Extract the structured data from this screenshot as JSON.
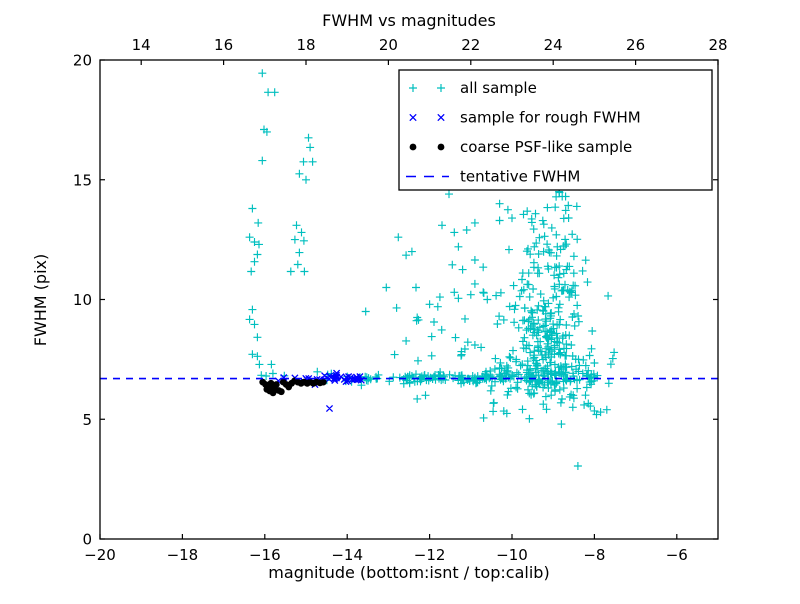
{
  "window": {
    "background": "#ffffff"
  },
  "chart_data": {
    "type": "scatter",
    "title": "FWHM vs magnitudes",
    "xlabel": "magnitude (bottom:isnt / top:calib)",
    "ylabel": "FWHM (pix)",
    "grid": false,
    "legend_position": "upper right",
    "x_bottom_axis": {
      "range": [
        -20,
        -5
      ],
      "ticks": [
        -20,
        -18,
        -16,
        -14,
        -12,
        -10,
        -8,
        -6
      ],
      "tick_labels": [
        "−20",
        "−18",
        "−16",
        "−14",
        "−12",
        "−10",
        "−8",
        "−6"
      ]
    },
    "x_top_axis": {
      "range": [
        13,
        28
      ],
      "ticks": [
        14,
        16,
        18,
        20,
        22,
        24,
        26,
        28
      ],
      "tick_labels": [
        "14",
        "16",
        "18",
        "20",
        "22",
        "24",
        "26",
        "28"
      ]
    },
    "y_axis": {
      "range": [
        0,
        20
      ],
      "ticks": [
        0,
        5,
        10,
        15,
        20
      ],
      "tick_labels": [
        "0",
        "5",
        "10",
        "15",
        "20"
      ]
    },
    "tentative_fwhm_value": 6.7,
    "random_seed": 7,
    "series": [
      {
        "name": "all sample",
        "marker": "plus",
        "color": "#00bfbf",
        "points": [
          [
            -16.06,
            19.45
          ],
          [
            -15.92,
            18.65
          ],
          [
            -15.76,
            18.65
          ],
          [
            -16.02,
            17.1
          ],
          [
            -15.95,
            17.0
          ],
          [
            -16.06,
            15.8
          ],
          [
            -16.3,
            13.8
          ],
          [
            -16.16,
            13.2
          ],
          [
            -16.37,
            12.6
          ],
          [
            -16.25,
            12.4
          ],
          [
            -16.14,
            12.3
          ],
          [
            -16.18,
            11.88
          ],
          [
            -16.25,
            11.58
          ],
          [
            -16.33,
            11.17
          ],
          [
            -16.3,
            9.58
          ],
          [
            -16.37,
            9.17
          ],
          [
            -16.25,
            8.96
          ],
          [
            -16.18,
            8.42
          ],
          [
            -16.3,
            7.71
          ],
          [
            -16.18,
            7.63
          ],
          [
            -16.13,
            7.29
          ],
          [
            -15.84,
            7.29
          ],
          [
            -14.94,
            16.75
          ],
          [
            -14.9,
            16.35
          ],
          [
            -15.06,
            15.75
          ],
          [
            -14.84,
            15.75
          ],
          [
            -15.16,
            15.25
          ],
          [
            -15.0,
            15.0
          ],
          [
            -15.23,
            13.1
          ],
          [
            -15.11,
            12.8
          ],
          [
            -15.27,
            12.5
          ],
          [
            -15.05,
            12.45
          ],
          [
            -15.16,
            11.96
          ],
          [
            -15.2,
            11.46
          ],
          [
            -15.37,
            11.17
          ],
          [
            -15.04,
            11.17
          ],
          [
            -12.57,
            11.85
          ],
          [
            -13.05,
            10.5
          ],
          [
            -12.33,
            10.5
          ],
          [
            -13.55,
            9.5
          ],
          [
            -12.8,
            9.65
          ],
          [
            -12.3,
            9.25
          ],
          [
            -12.27,
            9.15
          ],
          [
            -12.0,
            9.8
          ],
          [
            -11.8,
            9.7
          ],
          [
            -11.75,
            10.1
          ],
          [
            -11.4,
            10.3
          ],
          [
            -11.3,
            10.05
          ],
          [
            -11.0,
            10.2
          ],
          [
            -10.9,
            10.65
          ],
          [
            -10.7,
            10.3
          ],
          [
            -10.6,
            10.0
          ],
          [
            -11.53,
            14.4
          ],
          [
            -12.76,
            12.6
          ],
          [
            -12.43,
            12.0
          ],
          [
            -11.7,
            13.1
          ],
          [
            -11.4,
            12.8
          ],
          [
            -11.1,
            12.9
          ],
          [
            -10.9,
            13.2
          ],
          [
            -11.3,
            12.2
          ],
          [
            -11.45,
            11.45
          ],
          [
            -11.2,
            11.25
          ],
          [
            -10.9,
            11.65
          ],
          [
            -10.7,
            11.35
          ],
          [
            -12.85,
            7.7
          ],
          [
            -11.95,
            7.65
          ],
          [
            -11.95,
            8.45
          ],
          [
            -10.9,
            8.1
          ],
          [
            -10.75,
            8.0
          ],
          [
            -10.2,
            9.15
          ],
          [
            -9.95,
            9.05
          ],
          [
            -10.3,
            14.0
          ],
          [
            -10.1,
            13.75
          ],
          [
            -10.3,
            13.3
          ],
          [
            -10.0,
            13.4
          ],
          [
            -8.7,
            14.3
          ],
          [
            -8.9,
            12.2
          ],
          [
            -8.5,
            11.1
          ],
          [
            -7.6,
            7.3
          ],
          [
            -8.0,
            7.35
          ],
          [
            -7.65,
            6.5
          ],
          [
            -8.4,
            3.05
          ],
          [
            -12.3,
            5.85
          ],
          [
            -12.1,
            6.0
          ],
          [
            -8.25,
            5.6
          ],
          [
            -8.1,
            5.55
          ],
          [
            -8.0,
            5.35
          ],
          [
            -7.85,
            5.3
          ],
          [
            -7.7,
            5.4
          ],
          [
            -7.95,
            5.2
          ]
        ],
        "clusters": [
          {
            "n": 20,
            "x_uniform": [
              -14.3,
              -12.6
            ],
            "y_gauss": [
              6.72,
              0.09
            ]
          },
          {
            "n": 85,
            "x_uniform": [
              -12.6,
              -10.6
            ],
            "y_gauss": [
              6.72,
              0.11
            ]
          },
          {
            "n": 110,
            "x_uniform": [
              -10.6,
              -8.0
            ],
            "y_gauss": [
              6.75,
              0.2
            ]
          },
          {
            "n": 160,
            "x_gauss": [
              -9.15,
              0.5
            ],
            "y_gauss": [
              7.9,
              0.85
            ]
          },
          {
            "n": 85,
            "x_gauss": [
              -9.25,
              0.55
            ],
            "y_gauss": [
              10.1,
              1.0
            ]
          },
          {
            "n": 40,
            "x_gauss": [
              -9.1,
              0.45
            ],
            "y_gauss": [
              12.4,
              0.8
            ]
          },
          {
            "n": 10,
            "x_gauss": [
              -9.0,
              0.35
            ],
            "y_gauss": [
              14.0,
              0.4
            ]
          },
          {
            "n": 40,
            "x_uniform": [
              -10.8,
              -8.1
            ],
            "y_gauss": [
              5.95,
              0.4
            ]
          },
          {
            "n": 8,
            "x_uniform": [
              -16.1,
              -14.35
            ],
            "y_gauss": [
              6.85,
              0.12
            ]
          },
          {
            "n": 12,
            "x_uniform": [
              -12.6,
              -10.6
            ],
            "y_gauss": [
              8.3,
              0.5
            ]
          }
        ]
      },
      {
        "name": "sample for rough FWHM",
        "marker": "cross",
        "color": "#0000ff",
        "points": [
          [
            -14.43,
            5.45
          ]
        ],
        "clusters": [
          {
            "n": 20,
            "x_uniform": [
              -14.75,
              -13.85
            ],
            "y_gauss": [
              6.7,
              0.1
            ]
          },
          {
            "n": 10,
            "x_uniform": [
              -13.9,
              -13.55
            ],
            "y_gauss": [
              6.7,
              0.08
            ]
          },
          {
            "n": 10,
            "x_uniform": [
              -15.8,
              -14.75
            ],
            "y_gauss": [
              6.6,
              0.09
            ]
          }
        ]
      },
      {
        "name": "coarse PSF-like sample",
        "marker": "dot",
        "color": "#000000",
        "points": [
          [
            -16.05,
            6.55
          ],
          [
            -15.98,
            6.45
          ],
          [
            -15.92,
            6.35
          ],
          [
            -15.85,
            6.5
          ],
          [
            -15.95,
            6.25
          ],
          [
            -15.88,
            6.18
          ],
          [
            -15.8,
            6.1
          ],
          [
            -15.78,
            6.3
          ],
          [
            -15.72,
            6.45
          ],
          [
            -15.66,
            6.2
          ],
          [
            -15.6,
            6.15
          ],
          [
            -15.55,
            6.55
          ],
          [
            -15.48,
            6.45
          ],
          [
            -15.42,
            6.35
          ],
          [
            -15.35,
            6.5
          ],
          [
            -15.28,
            6.6
          ],
          [
            -15.2,
            6.55
          ],
          [
            -15.12,
            6.5
          ],
          [
            -15.05,
            6.55
          ],
          [
            -14.97,
            6.5
          ],
          [
            -14.9,
            6.55
          ],
          [
            -14.82,
            6.5
          ],
          [
            -14.75,
            6.55
          ],
          [
            -14.66,
            6.52
          ],
          [
            -14.58,
            6.55
          ]
        ],
        "clusters": []
      },
      {
        "name": "tentative FWHM",
        "marker": "dashed-line",
        "color": "#0000ff",
        "y": 6.7
      }
    ]
  }
}
